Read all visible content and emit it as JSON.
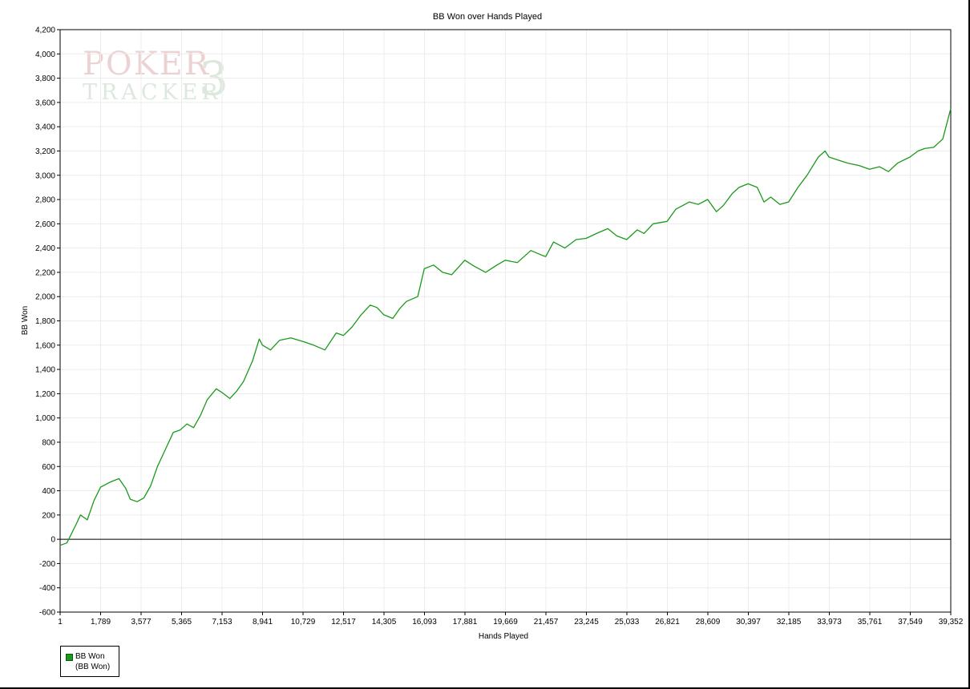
{
  "watermark": {
    "line1": "POKER",
    "line2": "TRACKER",
    "mark": "3",
    "color": "#c98080"
  },
  "chart_data": {
    "type": "line",
    "title": "BB Won over Hands Played",
    "xlabel": "Hands Played",
    "ylabel": "BB Won",
    "ylim": [
      -600,
      4200
    ],
    "yticks": [
      "4,200",
      "4,000",
      "3,800",
      "3,600",
      "3,400",
      "3,200",
      "3,000",
      "2,800",
      "2,600",
      "2,400",
      "2,200",
      "2,000",
      "1,800",
      "1,600",
      "1,400",
      "1,200",
      "1,000",
      "800",
      "600",
      "400",
      "200",
      "0",
      "-200",
      "-400",
      "-600"
    ],
    "xlim": [
      1,
      39352
    ],
    "xticks": [
      "1",
      "1,789",
      "3,577",
      "5,365",
      "7,153",
      "8,941",
      "10,729",
      "12,517",
      "14,305",
      "16,093",
      "17,881",
      "19,669",
      "21,457",
      "23,245",
      "25,033",
      "26,821",
      "28,609",
      "30,397",
      "32,185",
      "33,973",
      "35,761",
      "37,549",
      "39,352"
    ],
    "grid": true,
    "legend_position": "bottom-left",
    "series": [
      {
        "name": "BB Won",
        "legend_sub": "(BB Won)",
        "color": "#1a9a1a",
        "x": [
          1,
          300,
          700,
          900,
          1200,
          1500,
          1789,
          2200,
          2600,
          2900,
          3100,
          3400,
          3700,
          4000,
          4300,
          4700,
          5000,
          5300,
          5600,
          5900,
          6200,
          6500,
          6900,
          7153,
          7500,
          7800,
          8100,
          8500,
          8800,
          8941,
          9300,
          9700,
          10200,
          10729,
          11200,
          11700,
          12200,
          12517,
          12900,
          13300,
          13700,
          14000,
          14305,
          14700,
          15000,
          15300,
          15800,
          16093,
          16500,
          16900,
          17300,
          17881,
          18300,
          18800,
          19300,
          19669,
          20200,
          20800,
          21300,
          21457,
          21800,
          22300,
          22800,
          23245,
          23700,
          24200,
          24600,
          25033,
          25500,
          25800,
          26200,
          26821,
          27200,
          27800,
          28200,
          28609,
          29000,
          29300,
          29700,
          30000,
          30397,
          30800,
          31100,
          31400,
          31800,
          32185,
          32600,
          33000,
          33500,
          33800,
          33973,
          34300,
          34800,
          35300,
          35761,
          36200,
          36600,
          37000,
          37549,
          37900,
          38200,
          38600,
          39000,
          39352
        ],
        "y": [
          -50,
          -30,
          120,
          200,
          160,
          320,
          430,
          470,
          500,
          420,
          330,
          310,
          340,
          440,
          600,
          760,
          880,
          900,
          950,
          920,
          1020,
          1150,
          1240,
          1210,
          1160,
          1220,
          1300,
          1470,
          1650,
          1600,
          1560,
          1640,
          1660,
          1630,
          1600,
          1560,
          1700,
          1680,
          1750,
          1850,
          1930,
          1910,
          1850,
          1820,
          1900,
          1960,
          2000,
          2230,
          2260,
          2200,
          2180,
          2300,
          2250,
          2200,
          2260,
          2300,
          2280,
          2380,
          2340,
          2330,
          2450,
          2400,
          2470,
          2480,
          2520,
          2560,
          2500,
          2470,
          2550,
          2520,
          2600,
          2620,
          2720,
          2780,
          2760,
          2800,
          2700,
          2750,
          2850,
          2900,
          2930,
          2900,
          2780,
          2820,
          2760,
          2780,
          2900,
          3000,
          3150,
          3200,
          3150,
          3130,
          3100,
          3080,
          3050,
          3070,
          3030,
          3100,
          3150,
          3200,
          3220,
          3230,
          3300,
          3550
        ]
      }
    ]
  }
}
